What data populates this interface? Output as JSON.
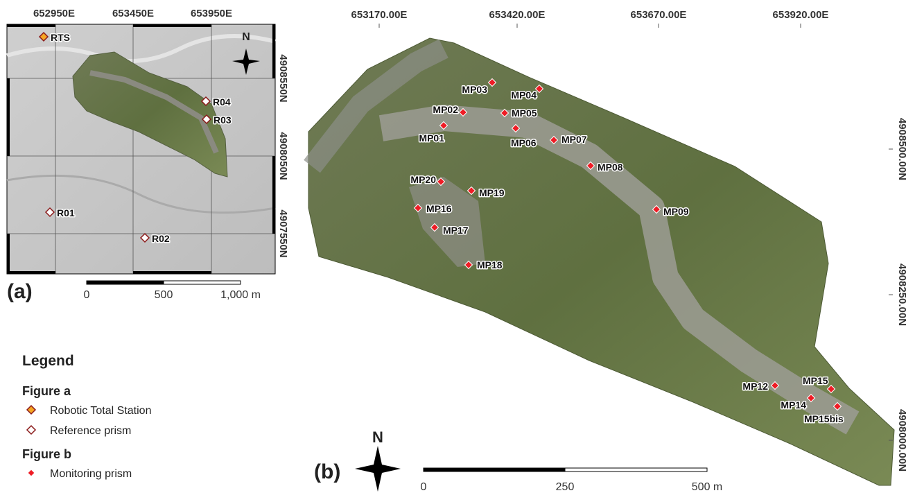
{
  "panel_a": {
    "label": "(a)",
    "x_ticks": [
      "652950E",
      "653450E",
      "653950E"
    ],
    "y_ticks": [
      "4908550N",
      "4908050N",
      "4907550N"
    ],
    "north": "N",
    "points": [
      "RTS",
      "R04",
      "R03",
      "R01",
      "R02"
    ],
    "scale_labels": [
      "0",
      "500",
      "1,000 m"
    ]
  },
  "panel_b": {
    "label": "(b)",
    "x_ticks": [
      "653170.00E",
      "653420.00E",
      "653670.00E",
      "653920.00E"
    ],
    "y_ticks": [
      "4908500.00N",
      "4908250.00N",
      "4908000.00N"
    ],
    "north": "N",
    "points": [
      "MP01",
      "MP02",
      "MP03",
      "MP04",
      "MP05",
      "MP06",
      "MP07",
      "MP08",
      "MP09",
      "MP12",
      "MP14",
      "MP15",
      "MP15bis",
      "MP16",
      "MP17",
      "MP18",
      "MP19",
      "MP20"
    ],
    "scale_labels": [
      "0",
      "250",
      "500 m"
    ]
  },
  "legend": {
    "title": "Legend",
    "groups": [
      {
        "title": "Figure a",
        "items": [
          "Robotic Total Station",
          "Reference prism"
        ]
      },
      {
        "title": "Figure b",
        "items": [
          "Monitoring prism"
        ]
      }
    ]
  }
}
